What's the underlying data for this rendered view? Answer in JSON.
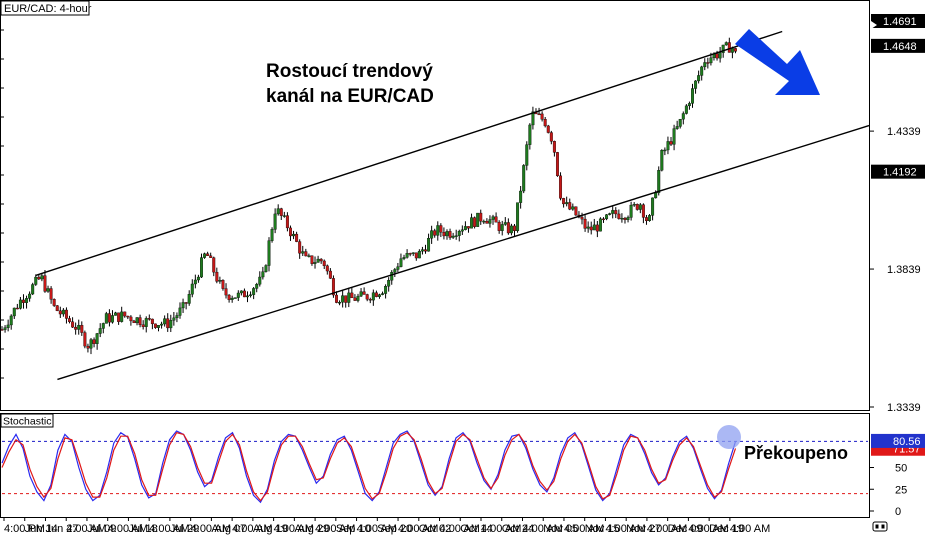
{
  "window": {
    "symbol_label": "EUR/CAD: 4-hour"
  },
  "annotations": {
    "title_line1": "Rostoucí trendový",
    "title_line2": "kanál na EUR/CAD",
    "overbought_label": "Překoupeno"
  },
  "colors": {
    "up_candle": "#1e7a1e",
    "down_candle": "#c41818",
    "wick": "#000000",
    "arrow": "#0a3de6",
    "stoch_k": "#2a2af0",
    "stoch_d": "#e01818",
    "overbought_line": "#1c1cc8",
    "oversold_line": "#e01818",
    "price_tag_bg": "#000000",
    "stoch_tag_k": "#2233cc",
    "stoch_tag_d": "#e01818",
    "highlight_circle": "#8fa0f0"
  },
  "icons": {
    "scroll": "scroll-arrows-icon"
  },
  "chart_data": [
    {
      "type": "candlestick",
      "title": "EUR/CAD: 4-hour",
      "ylim": [
        1.3339,
        1.472
      ],
      "y_ticks": [
        "1.3339",
        "1.3839",
        "1.4339"
      ],
      "price_tags": [
        "1.4192",
        "1.4648",
        "1.4691"
      ],
      "last_price": 1.4648,
      "x_tick_labels": [
        "4:00 PM",
        "Jun 14",
        "Jun 27",
        "4:00 AM",
        "Jul 09",
        "4:00 AM",
        "Jul 18",
        "4:00 AM",
        "Jul 29",
        "4:00 AM",
        "Aug 07",
        "4:00 AM",
        "Aug 19",
        "4:00 AM",
        "Aug 29",
        "4:00 AM",
        "Sep 10",
        "4:00 AM",
        "Sep 20",
        "4:00 AM",
        "Oct 02",
        "4:00 AM",
        "Oct 14",
        "4:00 AM",
        "Oct 24",
        "4:00 AM",
        "Nov 05",
        "4:00 AM",
        "Nov 15",
        "4:00 AM",
        "Nov 27",
        "4:00 AM",
        "Dec 09",
        "4:00 AM",
        "Dec 19",
        "4:00 AM"
      ],
      "price_path": [
        [
          0,
          1.362
        ],
        [
          0.02,
          1.372
        ],
        [
          0.045,
          1.381
        ],
        [
          0.06,
          1.37
        ],
        [
          0.085,
          1.363
        ],
        [
          0.1,
          1.356
        ],
        [
          0.12,
          1.366
        ],
        [
          0.14,
          1.367
        ],
        [
          0.165,
          1.365
        ],
        [
          0.19,
          1.364
        ],
        [
          0.21,
          1.37
        ],
        [
          0.235,
          1.39
        ],
        [
          0.255,
          1.375
        ],
        [
          0.275,
          1.374
        ],
        [
          0.3,
          1.38
        ],
        [
          0.315,
          1.406
        ],
        [
          0.33,
          1.399
        ],
        [
          0.35,
          1.387
        ],
        [
          0.37,
          1.387
        ],
        [
          0.385,
          1.374
        ],
        [
          0.4,
          1.373
        ],
        [
          0.42,
          1.374
        ],
        [
          0.44,
          1.377
        ],
        [
          0.46,
          1.388
        ],
        [
          0.48,
          1.389
        ],
        [
          0.5,
          1.398
        ],
        [
          0.515,
          1.397
        ],
        [
          0.535,
          1.4
        ],
        [
          0.555,
          1.403
        ],
        [
          0.575,
          1.399
        ],
        [
          0.59,
          1.398
        ],
        [
          0.6,
          1.418
        ],
        [
          0.61,
          1.44
        ],
        [
          0.625,
          1.438
        ],
        [
          0.635,
          1.43
        ],
        [
          0.645,
          1.408
        ],
        [
          0.66,
          1.404
        ],
        [
          0.675,
          1.398
        ],
        [
          0.69,
          1.4
        ],
        [
          0.705,
          1.404
        ],
        [
          0.72,
          1.404
        ],
        [
          0.735,
          1.408
        ],
        [
          0.745,
          1.4
        ],
        [
          0.76,
          1.425
        ],
        [
          0.78,
          1.436
        ],
        [
          0.795,
          1.448
        ],
        [
          0.81,
          1.46
        ],
        [
          0.825,
          1.462
        ],
        [
          0.84,
          1.465
        ],
        [
          0.855,
          1.455
        ],
        [
          0.87,
          1.465
        ]
      ],
      "trend_channel": {
        "upper": [
          [
            0.04,
            1.3816
          ],
          [
            0.9,
            1.47
          ]
        ],
        "lower": [
          [
            0.065,
            1.3439
          ],
          [
            1.0,
            1.4359
          ]
        ]
      }
    },
    {
      "type": "line",
      "title": "Stochastic",
      "ylim": [
        0,
        100
      ],
      "y_ticks": [
        "0",
        "25",
        "50"
      ],
      "levels": {
        "overbought": 80,
        "oversold": 20
      },
      "current_k": "80.56",
      "current_d": "71.57",
      "series": [
        {
          "values": [
            55,
            75,
            88,
            72,
            40,
            22,
            12,
            30,
            70,
            88,
            80,
            50,
            25,
            12,
            18,
            45,
            78,
            90,
            85,
            60,
            30,
            15,
            20,
            55,
            82,
            92,
            88,
            70,
            45,
            28,
            35,
            62,
            84,
            90,
            72,
            40,
            18,
            10,
            25,
            58,
            80,
            88,
            86,
            70,
            50,
            32,
            40,
            65,
            82,
            86,
            70,
            45,
            20,
            12,
            22,
            50,
            78,
            88,
            92,
            80,
            55,
            30,
            18,
            28,
            60,
            84,
            90,
            80,
            55,
            35,
            25,
            42,
            70,
            86,
            88,
            72,
            48,
            30,
            22,
            38,
            66,
            84,
            90,
            76,
            50,
            24,
            12,
            20,
            48,
            76,
            88,
            84,
            66,
            44,
            30,
            38,
            62,
            80,
            86,
            72,
            48,
            26,
            14,
            24,
            54,
            80
          ]
        },
        {
          "values": [
            50,
            68,
            82,
            76,
            48,
            28,
            16,
            26,
            60,
            84,
            82,
            58,
            32,
            16,
            16,
            38,
            70,
            86,
            86,
            66,
            36,
            18,
            18,
            48,
            76,
            90,
            88,
            74,
            50,
            32,
            32,
            56,
            80,
            88,
            76,
            46,
            22,
            12,
            22,
            52,
            76,
            86,
            86,
            74,
            54,
            36,
            38,
            60,
            78,
            84,
            74,
            50,
            26,
            14,
            20,
            44,
            72,
            86,
            90,
            82,
            60,
            34,
            20,
            26,
            54,
            80,
            88,
            82,
            60,
            38,
            26,
            38,
            64,
            82,
            88,
            76,
            52,
            34,
            24,
            34,
            60,
            80,
            88,
            78,
            54,
            28,
            14,
            18,
            42,
            70,
            86,
            84,
            70,
            48,
            32,
            36,
            58,
            76,
            84,
            74,
            52,
            30,
            16,
            22,
            48,
            72
          ]
        }
      ]
    }
  ]
}
